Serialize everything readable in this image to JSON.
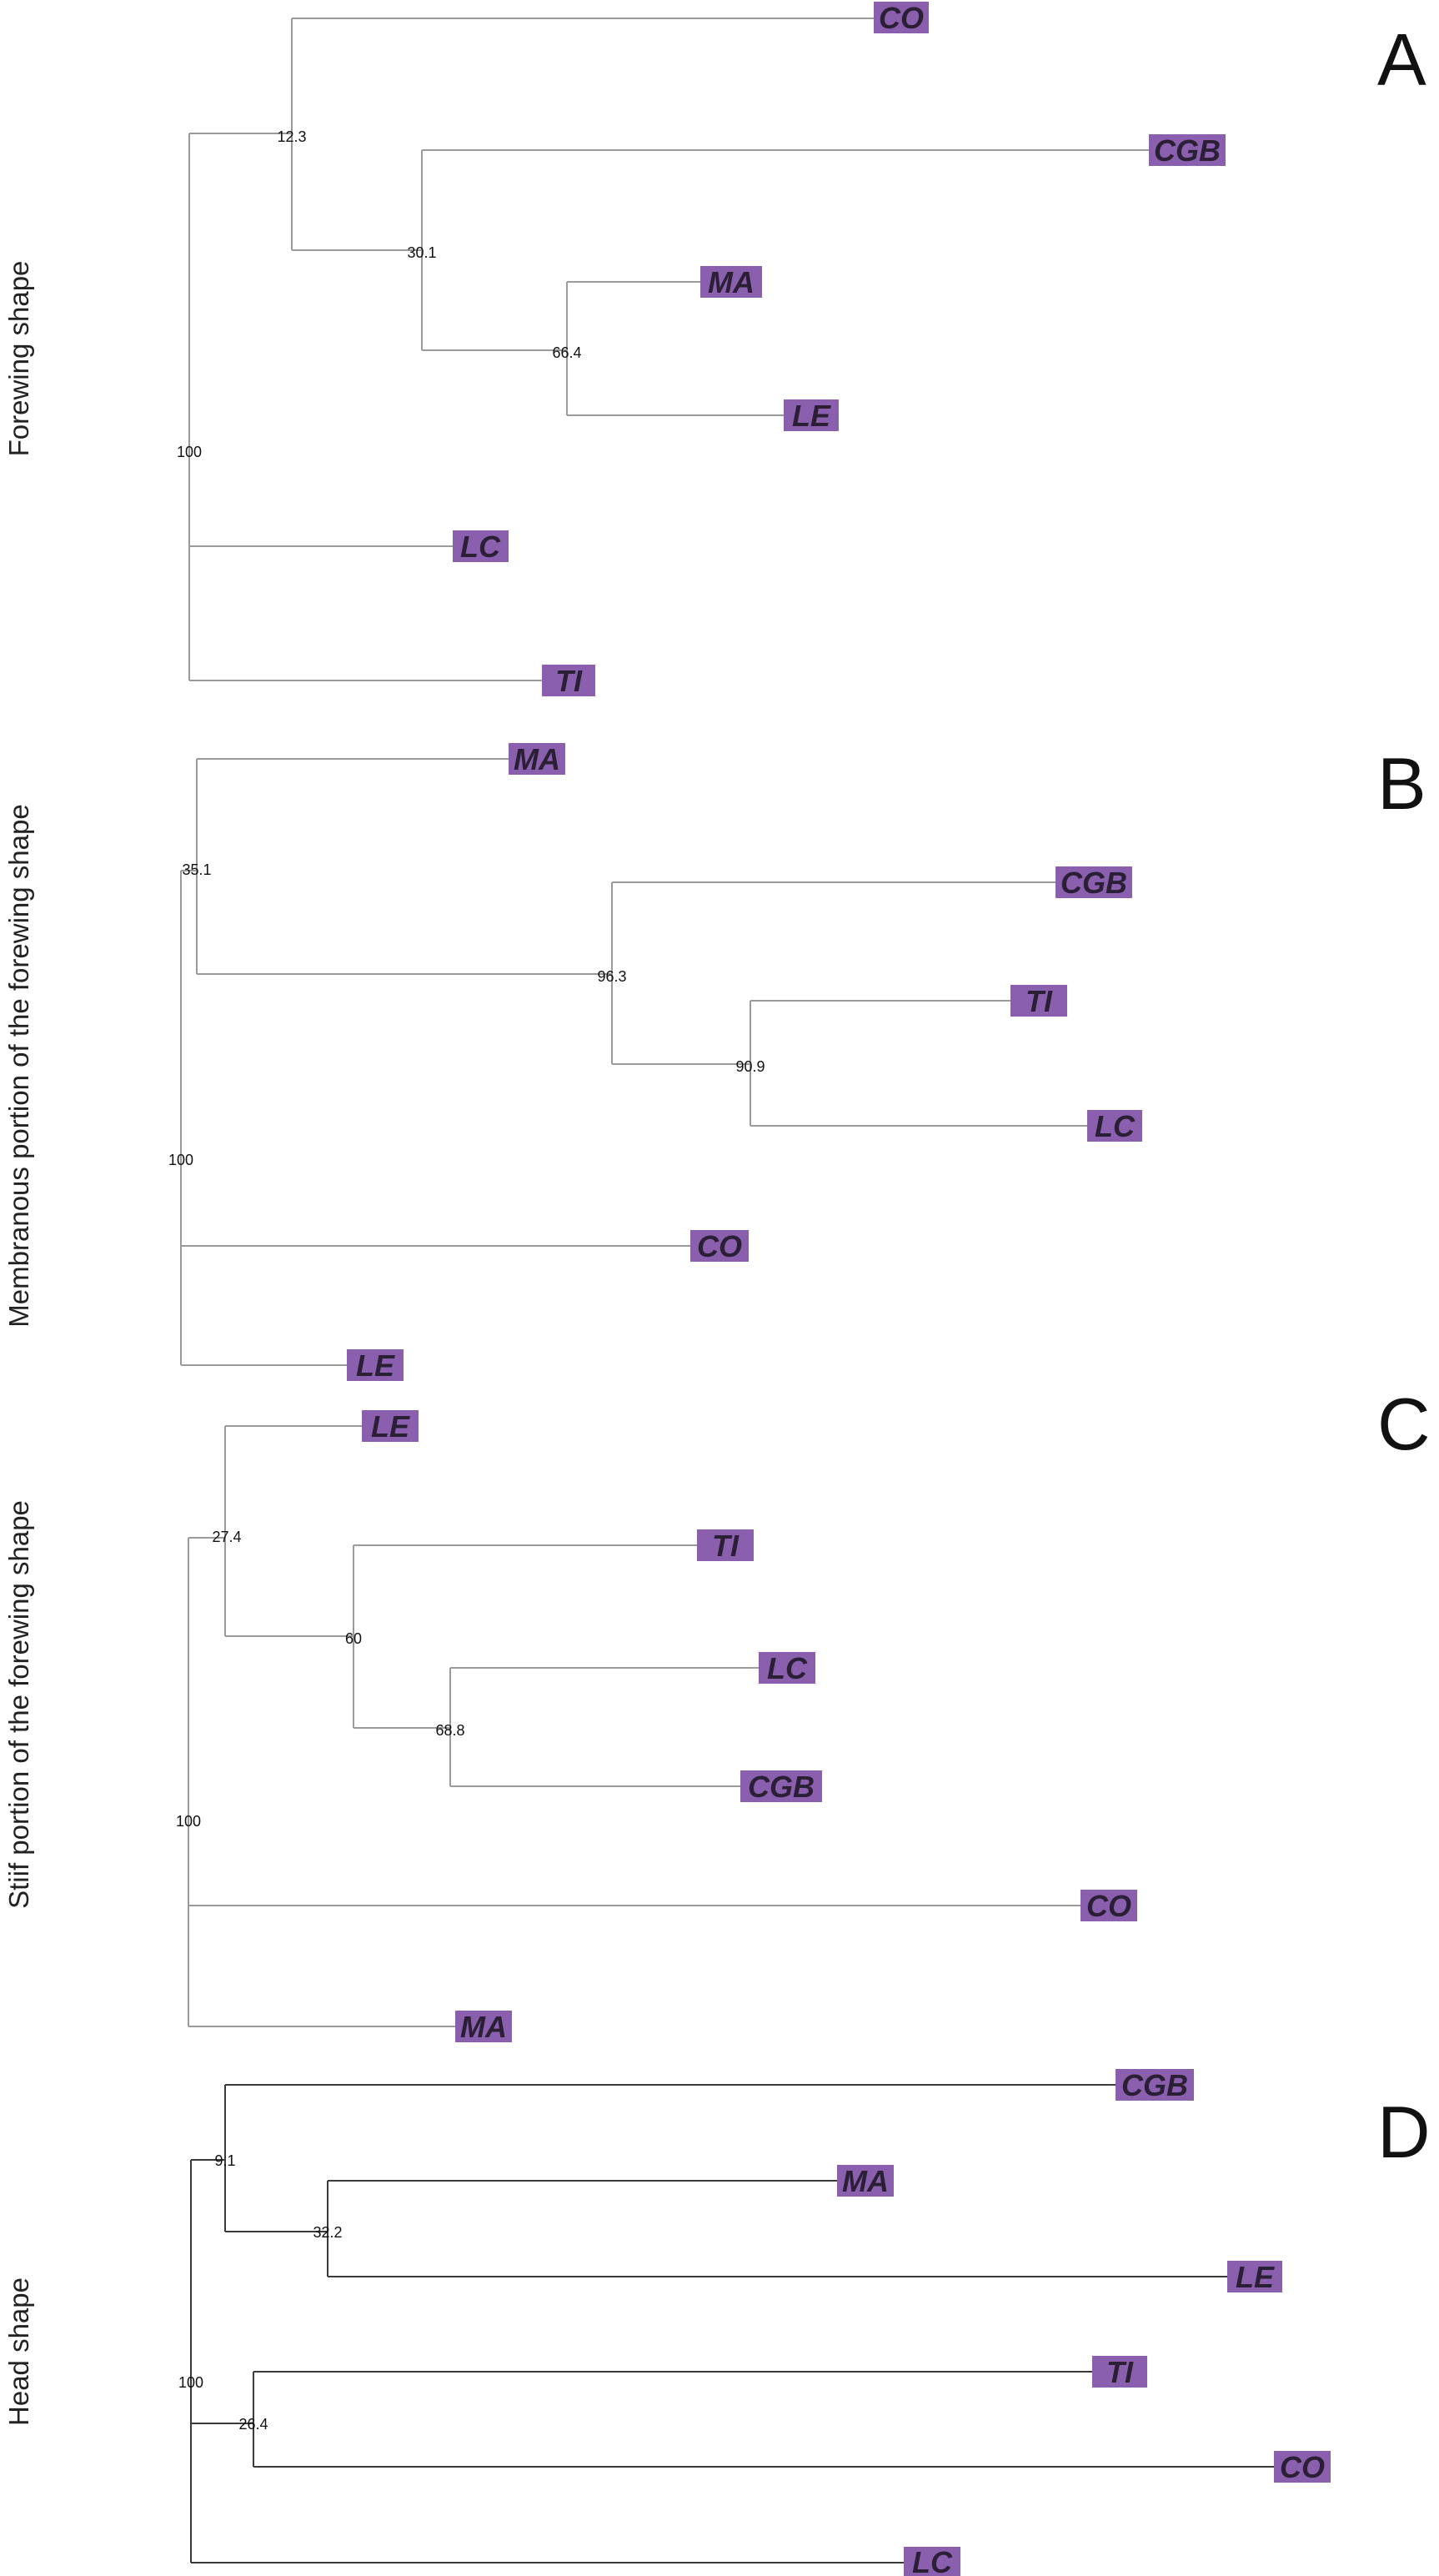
{
  "colors": {
    "leaf_fill": "#8a5fae",
    "line_gray": "#9a9a9a",
    "line_dark": "#3a3a3a"
  },
  "panels": [
    {
      "letter": "A",
      "label": "Forewing shape",
      "line_style": "gray",
      "tree": {
        "support": "100",
        "children": [
          {
            "support": "12.3",
            "children": [
              {
                "leaf": "CO"
              },
              {
                "support": "30.1",
                "children": [
                  {
                    "leaf": "CGB"
                  },
                  {
                    "support": "66.4",
                    "children": [
                      {
                        "leaf": "MA"
                      },
                      {
                        "leaf": "LE"
                      }
                    ]
                  }
                ]
              }
            ]
          },
          {
            "leaf": "LC"
          },
          {
            "leaf": "TI"
          }
        ]
      }
    },
    {
      "letter": "B",
      "label": "Membranous portion of the forewing shape",
      "line_style": "gray",
      "tree": {
        "support": "100",
        "children": [
          {
            "support": "35.1",
            "children": [
              {
                "leaf": "MA"
              },
              {
                "support": "96.3",
                "children": [
                  {
                    "leaf": "CGB"
                  },
                  {
                    "support": "90.9",
                    "children": [
                      {
                        "leaf": "TI"
                      },
                      {
                        "leaf": "LC"
                      }
                    ]
                  }
                ]
              }
            ]
          },
          {
            "leaf": "CO"
          },
          {
            "leaf": "LE"
          }
        ]
      }
    },
    {
      "letter": "C",
      "label": "Stiif portion of the forewing shape",
      "line_style": "gray",
      "tree": {
        "support": "100",
        "children": [
          {
            "support": "27.4",
            "children": [
              {
                "leaf": "LE"
              },
              {
                "support": "60",
                "children": [
                  {
                    "leaf": "TI"
                  },
                  {
                    "support": "68.8",
                    "children": [
                      {
                        "leaf": "LC"
                      },
                      {
                        "leaf": "CGB"
                      }
                    ]
                  }
                ]
              }
            ]
          },
          {
            "leaf": "CO"
          },
          {
            "leaf": "MA"
          }
        ]
      }
    },
    {
      "letter": "D",
      "label": "Head shape",
      "line_style": "dark",
      "tree": {
        "support": "100",
        "children": [
          {
            "support": "9.1",
            "children": [
              {
                "leaf": "CGB"
              },
              {
                "support": "32.2",
                "children": [
                  {
                    "leaf": "MA"
                  },
                  {
                    "leaf": "LE"
                  }
                ]
              }
            ]
          },
          {
            "support": "26.4",
            "children": [
              {
                "leaf": "TI"
              },
              {
                "leaf": "CO"
              }
            ]
          },
          {
            "leaf": "LC"
          }
        ]
      }
    }
  ]
}
